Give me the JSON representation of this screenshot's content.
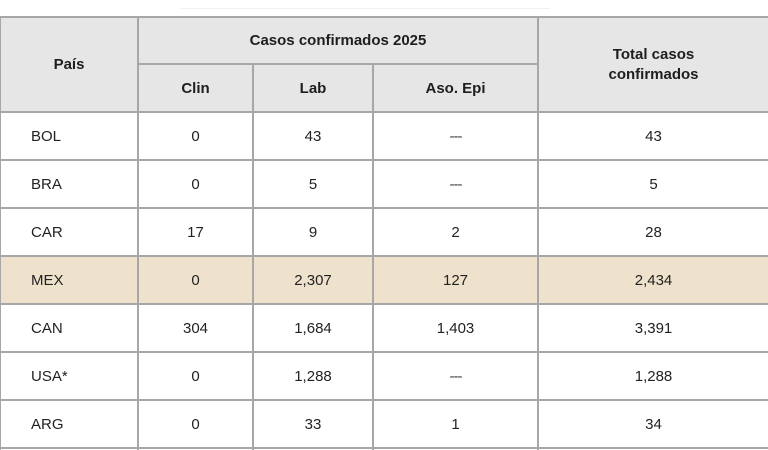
{
  "table": {
    "headers": {
      "country": "País",
      "group": "Casos confirmados 2025",
      "clin": "Clin",
      "lab": "Lab",
      "epi": "Aso. Epi",
      "total": "Total casos confirmados"
    },
    "rows": [
      {
        "country": "BOL",
        "clin": "0",
        "lab": "43",
        "epi": "---",
        "total": "43"
      },
      {
        "country": "BRA",
        "clin": "0",
        "lab": "5",
        "epi": "---",
        "total": "5"
      },
      {
        "country": "CAR",
        "clin": "17",
        "lab": "9",
        "epi": "2",
        "total": "28"
      },
      {
        "country": "MEX",
        "clin": "0",
        "lab": "2,307",
        "epi": "127",
        "total": "2,434"
      },
      {
        "country": "CAN",
        "clin": "304",
        "lab": "1,684",
        "epi": "1,403",
        "total": "3,391"
      },
      {
        "country": "USA*",
        "clin": "0",
        "lab": "1,288",
        "epi": "---",
        "total": "1,288"
      },
      {
        "country": "ARG",
        "clin": "0",
        "lab": "33",
        "epi": "1",
        "total": "34"
      }
    ],
    "highlight_color": "#efe2cc",
    "header_color": "#e6e6e6"
  }
}
